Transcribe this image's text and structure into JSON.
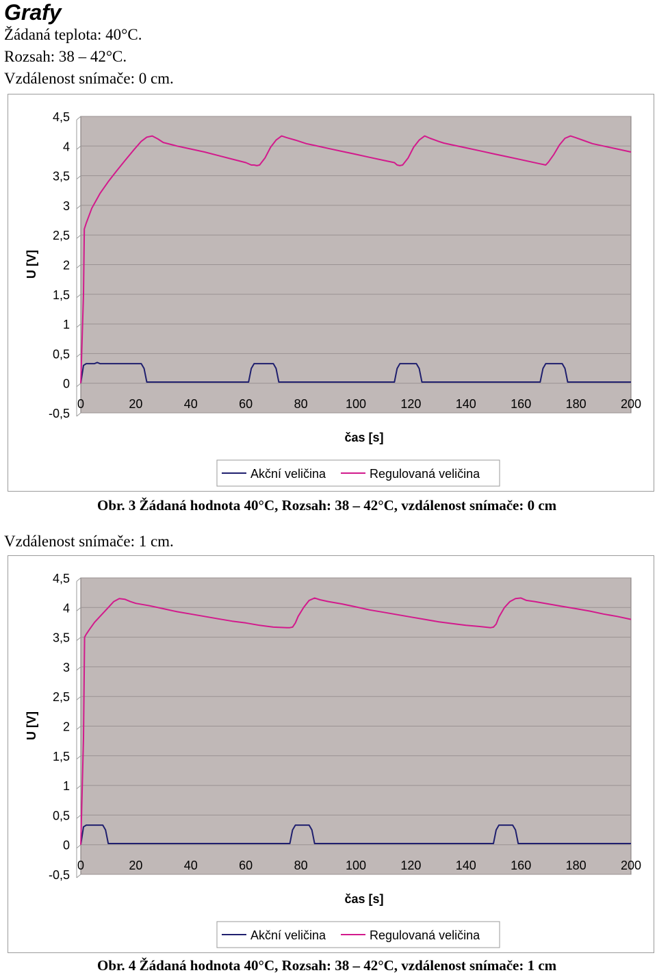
{
  "heading": "Grafy",
  "section1": {
    "lines": [
      "Žádaná teplota: 40°C.",
      "Rozsah: 38 – 42°C.",
      "Vzdálenost snímače: 0 cm."
    ]
  },
  "section2": {
    "lines": [
      "Vzdálenost snímače: 1 cm."
    ]
  },
  "captions": [
    "Obr. 3 Žádaná hodnota 40°C, Rozsah: 38 – 42°C, vzdálenost snímače: 0 cm",
    "Obr. 4 Žádaná hodnota 40°C, Rozsah: 38 – 42°C, vzdálenost snímače: 1 cm"
  ],
  "colors": {
    "plot_bg": "#c0b8b7",
    "grid": "#9a9292",
    "akcni": "#1f1f6e",
    "regulovana": "#d21a8c"
  },
  "chart_data": [
    {
      "type": "line",
      "xlabel": "čas [s]",
      "ylabel": "U [V]",
      "xlim": [
        0,
        200
      ],
      "ylim": [
        -0.5,
        4.5
      ],
      "x_ticks": [
        "0",
        "20",
        "40",
        "60",
        "80",
        "100",
        "120",
        "140",
        "160",
        "180",
        "200"
      ],
      "y_ticks": [
        "-0,5",
        "0",
        "0,5",
        "1",
        "1,5",
        "2",
        "2,5",
        "3",
        "3,5",
        "4",
        "4,5"
      ],
      "grid": true,
      "legend": "bottom",
      "series": [
        {
          "name": "Akční veličina",
          "color": "#1f1f6e",
          "x": [
            0,
            1,
            2,
            5,
            6,
            7,
            22,
            23,
            24,
            61,
            62,
            63,
            70,
            71,
            72,
            114,
            115,
            116,
            122,
            123,
            124,
            167,
            168,
            169,
            175,
            176,
            177,
            200
          ],
          "y": [
            0,
            0.3,
            0.33,
            0.33,
            0.35,
            0.33,
            0.33,
            0.25,
            0.02,
            0.02,
            0.25,
            0.33,
            0.33,
            0.25,
            0.02,
            0.02,
            0.25,
            0.33,
            0.33,
            0.25,
            0.02,
            0.02,
            0.25,
            0.33,
            0.33,
            0.25,
            0.02,
            0.02
          ]
        },
        {
          "name": "Regulovaná veličina",
          "color": "#d21a8c",
          "x": [
            0,
            1,
            1.3,
            2,
            4,
            7,
            10,
            13,
            16,
            19,
            22,
            24,
            26,
            28,
            30,
            35,
            40,
            45,
            50,
            55,
            60,
            62,
            63,
            64,
            65,
            67,
            69,
            71,
            73,
            75,
            78,
            80,
            82,
            85,
            90,
            95,
            100,
            105,
            110,
            114,
            115,
            116,
            117,
            119,
            121,
            123,
            125,
            127,
            130,
            132,
            135,
            140,
            145,
            150,
            155,
            160,
            167,
            168,
            169,
            170,
            172,
            174,
            176,
            178,
            180,
            183,
            186,
            190,
            195,
            200
          ],
          "y": [
            0,
            1.5,
            2.6,
            2.7,
            2.95,
            3.2,
            3.4,
            3.58,
            3.75,
            3.92,
            4.08,
            4.15,
            4.17,
            4.12,
            4.06,
            4.0,
            3.95,
            3.9,
            3.84,
            3.78,
            3.72,
            3.68,
            3.68,
            3.67,
            3.68,
            3.8,
            3.98,
            4.1,
            4.17,
            4.14,
            4.1,
            4.07,
            4.04,
            4.01,
            3.96,
            3.91,
            3.86,
            3.81,
            3.76,
            3.72,
            3.68,
            3.67,
            3.68,
            3.8,
            3.98,
            4.1,
            4.17,
            4.13,
            4.08,
            4.05,
            4.02,
            3.97,
            3.92,
            3.87,
            3.82,
            3.77,
            3.7,
            3.69,
            3.68,
            3.73,
            3.86,
            4.02,
            4.13,
            4.17,
            4.14,
            4.09,
            4.04,
            4.0,
            3.95,
            3.9
          ]
        }
      ]
    },
    {
      "type": "line",
      "xlabel": "čas [s]",
      "ylabel": "U [V]",
      "xlim": [
        0,
        200
      ],
      "ylim": [
        -0.5,
        4.5
      ],
      "x_ticks": [
        "0",
        "20",
        "40",
        "60",
        "80",
        "100",
        "120",
        "140",
        "160",
        "180",
        "200"
      ],
      "y_ticks": [
        "-0,5",
        "0",
        "0,5",
        "1",
        "1,5",
        "2",
        "2,5",
        "3",
        "3,5",
        "4",
        "4,5"
      ],
      "grid": true,
      "legend": "bottom",
      "series": [
        {
          "name": "Akční veličina",
          "color": "#1f1f6e",
          "x": [
            0,
            1,
            2,
            8,
            9,
            10,
            76,
            77,
            78,
            83,
            84,
            85,
            150,
            151,
            152,
            157,
            158,
            159,
            200
          ],
          "y": [
            0,
            0.3,
            0.33,
            0.33,
            0.25,
            0.02,
            0.02,
            0.25,
            0.33,
            0.33,
            0.25,
            0.02,
            0.02,
            0.25,
            0.33,
            0.33,
            0.25,
            0.02,
            0.02
          ]
        },
        {
          "name": "Regulovaná veličina",
          "color": "#d21a8c",
          "x": [
            0,
            1,
            1.4,
            2,
            3,
            5,
            7,
            10,
            12,
            14,
            16,
            18,
            20,
            25,
            30,
            35,
            40,
            45,
            50,
            55,
            60,
            65,
            70,
            75,
            76,
            77,
            78,
            79,
            81,
            83,
            85,
            87,
            90,
            95,
            100,
            105,
            110,
            115,
            120,
            125,
            130,
            135,
            140,
            145,
            149,
            150,
            151,
            152,
            154,
            156,
            158,
            160,
            162,
            165,
            170,
            175,
            180,
            185,
            190,
            195,
            200
          ],
          "y": [
            0,
            1.8,
            3.5,
            3.55,
            3.62,
            3.75,
            3.85,
            4.0,
            4.1,
            4.15,
            4.14,
            4.1,
            4.07,
            4.03,
            3.98,
            3.93,
            3.89,
            3.85,
            3.81,
            3.77,
            3.74,
            3.7,
            3.67,
            3.66,
            3.66,
            3.67,
            3.74,
            3.85,
            4.0,
            4.12,
            4.16,
            4.13,
            4.1,
            4.06,
            4.01,
            3.96,
            3.92,
            3.88,
            3.84,
            3.8,
            3.76,
            3.73,
            3.7,
            3.68,
            3.66,
            3.67,
            3.72,
            3.84,
            4.0,
            4.1,
            4.15,
            4.16,
            4.12,
            4.1,
            4.06,
            4.02,
            3.98,
            3.94,
            3.89,
            3.85,
            3.8
          ]
        }
      ]
    }
  ]
}
